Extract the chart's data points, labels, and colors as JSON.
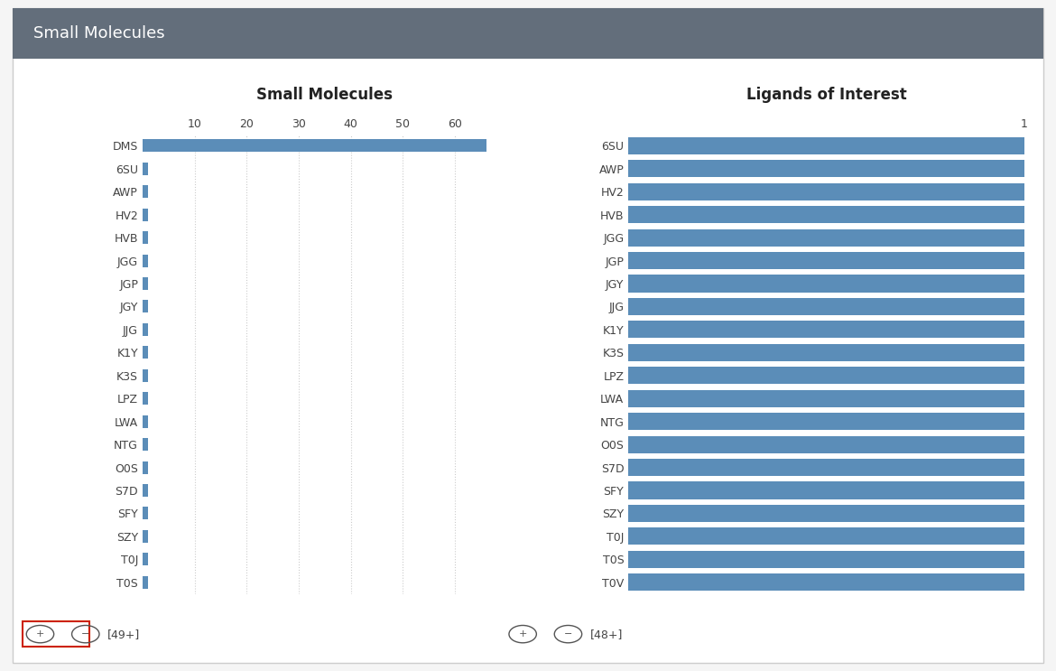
{
  "title": "Small Molecules",
  "header_bg": "#636e7b",
  "header_text_color": "#ffffff",
  "bg_color": "#f5f5f5",
  "panel_bg": "#ffffff",
  "border_color": "#cccccc",
  "left_chart_title": "Small Molecules",
  "left_categories": [
    "DMS",
    "6SU",
    "AWP",
    "HV2",
    "HVB",
    "JGG",
    "JGP",
    "JGY",
    "JJG",
    "K1Y",
    "K3S",
    "LPZ",
    "LWA",
    "NTG",
    "O0S",
    "S7D",
    "SFY",
    "SZY",
    "T0J",
    "T0S"
  ],
  "left_values": [
    66,
    1,
    1,
    1,
    1,
    1,
    1,
    1,
    1,
    1,
    1,
    1,
    1,
    1,
    1,
    1,
    1,
    1,
    1,
    1
  ],
  "left_xticks": [
    10,
    20,
    30,
    40,
    50,
    60
  ],
  "left_xlim": [
    0,
    70
  ],
  "left_bar_color": "#5b8db8",
  "left_count_label": "[49+]",
  "right_chart_title": "Ligands of Interest",
  "right_categories": [
    "6SU",
    "AWP",
    "HV2",
    "HVB",
    "JGG",
    "JGP",
    "JGY",
    "JJG",
    "K1Y",
    "K3S",
    "LPZ",
    "LWA",
    "NTG",
    "O0S",
    "S7D",
    "SFY",
    "SZY",
    "T0J",
    "T0S",
    "T0V"
  ],
  "right_values": [
    1,
    1,
    1,
    1,
    1,
    1,
    1,
    1,
    1,
    1,
    1,
    1,
    1,
    1,
    1,
    1,
    1,
    1,
    1,
    1
  ],
  "right_xticks": [
    1
  ],
  "right_xlim": [
    0,
    1.0
  ],
  "right_bar_color": "#5b8db8",
  "right_count_label": "[48+]",
  "grid_color": "#cccccc",
  "grid_linestyle": ":",
  "tick_color": "#444444",
  "label_fontsize": 9,
  "title_fontsize": 12,
  "left_bar_height": 0.55,
  "right_bar_height": 0.75
}
